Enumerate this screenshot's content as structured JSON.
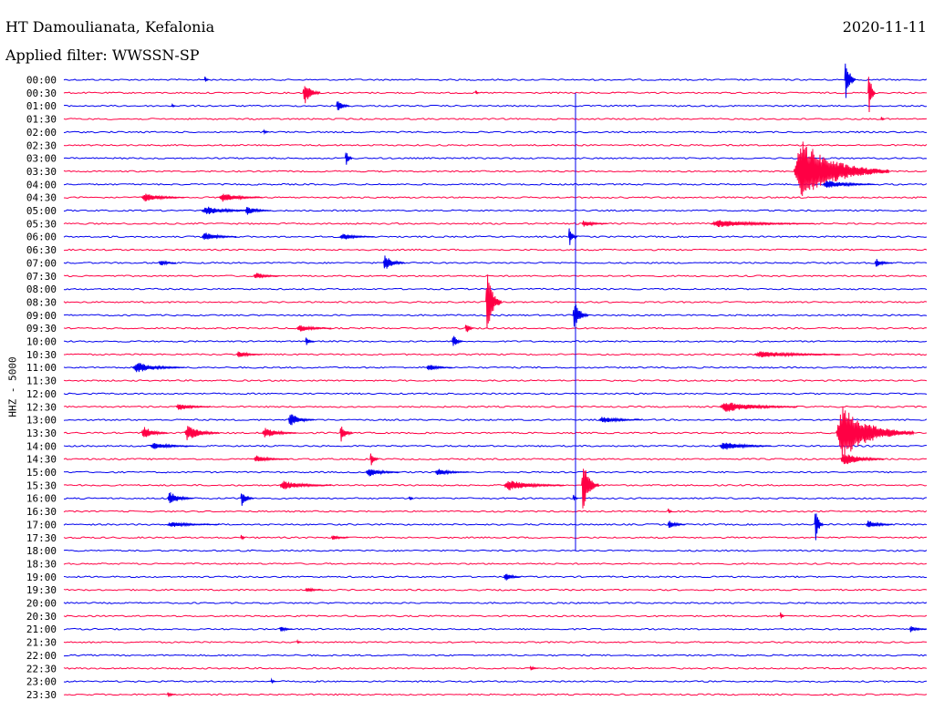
{
  "header": {
    "station": "HT Damoulianata, Kefalonia",
    "date": "2020-11-11",
    "filter": "Applied filter: WWSSN-SP"
  },
  "chart_data": {
    "type": "line",
    "ylabel": "HHZ - 5000",
    "colors": [
      "#0000ee",
      "#ff0044"
    ],
    "row_labels": [
      "00:00",
      "00:30",
      "01:00",
      "01:30",
      "02:00",
      "02:30",
      "03:00",
      "03:30",
      "04:00",
      "04:30",
      "05:00",
      "05:30",
      "06:00",
      "06:30",
      "07:00",
      "07:30",
      "08:00",
      "08:30",
      "09:00",
      "09:30",
      "10:00",
      "10:30",
      "11:00",
      "11:30",
      "12:00",
      "12:30",
      "13:00",
      "13:30",
      "14:00",
      "14:30",
      "15:00",
      "15:30",
      "16:00",
      "16:30",
      "17:00",
      "17:30",
      "18:00",
      "18:30",
      "19:00",
      "19:30",
      "20:00",
      "20:30",
      "21:00",
      "21:30",
      "22:00",
      "22:30",
      "23:00",
      "23:30"
    ],
    "row_minutes": 30,
    "events": [
      {
        "row": 0,
        "t": 0.905,
        "amp": 30,
        "len": 0.012,
        "dir": "both"
      },
      {
        "row": 0,
        "t": 0.163,
        "amp": 4,
        "len": 0.005,
        "dir": "both"
      },
      {
        "row": 1,
        "t": 0.277,
        "amp": 14,
        "len": 0.02,
        "dir": "both"
      },
      {
        "row": 1,
        "t": 0.932,
        "amp": 34,
        "len": 0.008,
        "dir": "both"
      },
      {
        "row": 1,
        "t": 0.477,
        "amp": 3,
        "len": 0.004,
        "dir": "both"
      },
      {
        "row": 2,
        "t": 0.316,
        "amp": 8,
        "len": 0.015,
        "dir": "both"
      },
      {
        "row": 2,
        "t": 0.125,
        "amp": 3,
        "len": 0.004,
        "dir": "both"
      },
      {
        "row": 3,
        "t": 0.947,
        "amp": 3,
        "len": 0.004,
        "dir": "both"
      },
      {
        "row": 4,
        "t": 0.231,
        "amp": 4,
        "len": 0.006,
        "dir": "both"
      },
      {
        "row": 6,
        "t": 0.326,
        "amp": 12,
        "len": 0.008,
        "dir": "both"
      },
      {
        "row": 7,
        "t": 0.846,
        "amp": 36,
        "len": 0.11,
        "dir": "both"
      },
      {
        "row": 8,
        "t": 0.88,
        "amp": 5,
        "len": 0.06,
        "dir": "both"
      },
      {
        "row": 9,
        "t": 0.09,
        "amp": 5,
        "len": 0.05,
        "dir": "both"
      },
      {
        "row": 9,
        "t": 0.18,
        "amp": 5,
        "len": 0.05,
        "dir": "both"
      },
      {
        "row": 10,
        "t": 0.16,
        "amp": 5,
        "len": 0.06,
        "dir": "both"
      },
      {
        "row": 10,
        "t": 0.21,
        "amp": 5,
        "len": 0.03,
        "dir": "both"
      },
      {
        "row": 11,
        "t": 0.6,
        "amp": 4,
        "len": 0.03,
        "dir": "both"
      },
      {
        "row": 11,
        "t": 0.75,
        "amp": 4,
        "len": 0.12,
        "dir": "both"
      },
      {
        "row": 12,
        "t": 0.585,
        "amp": 12,
        "len": 0.01,
        "dir": "both"
      },
      {
        "row": 12,
        "t": 0.16,
        "amp": 5,
        "len": 0.04,
        "dir": "both"
      },
      {
        "row": 12,
        "t": 0.32,
        "amp": 4,
        "len": 0.04,
        "dir": "both"
      },
      {
        "row": 14,
        "t": 0.37,
        "amp": 9,
        "len": 0.025,
        "dir": "both"
      },
      {
        "row": 14,
        "t": 0.11,
        "amp": 4,
        "len": 0.02,
        "dir": "both"
      },
      {
        "row": 14,
        "t": 0.94,
        "amp": 5,
        "len": 0.02,
        "dir": "both"
      },
      {
        "row": 15,
        "t": 0.22,
        "amp": 4,
        "len": 0.03,
        "dir": "both"
      },
      {
        "row": 17,
        "t": 0.489,
        "amp": 38,
        "len": 0.018,
        "dir": "both"
      },
      {
        "row": 18,
        "t": 0.59,
        "amp": 18,
        "len": 0.018,
        "dir": "both"
      },
      {
        "row": 19,
        "t": 0.465,
        "amp": 8,
        "len": 0.01,
        "dir": "both"
      },
      {
        "row": 19,
        "t": 0.27,
        "amp": 4,
        "len": 0.04,
        "dir": "both"
      },
      {
        "row": 20,
        "t": 0.45,
        "amp": 9,
        "len": 0.012,
        "dir": "both"
      },
      {
        "row": 20,
        "t": 0.28,
        "amp": 5,
        "len": 0.01,
        "dir": "both"
      },
      {
        "row": 21,
        "t": 0.2,
        "amp": 4,
        "len": 0.03,
        "dir": "both"
      },
      {
        "row": 21,
        "t": 0.8,
        "amp": 4,
        "len": 0.1,
        "dir": "both"
      },
      {
        "row": 22,
        "t": 0.08,
        "amp": 6,
        "len": 0.06,
        "dir": "both"
      },
      {
        "row": 22,
        "t": 0.42,
        "amp": 4,
        "len": 0.03,
        "dir": "both"
      },
      {
        "row": 25,
        "t": 0.76,
        "amp": 6,
        "len": 0.09,
        "dir": "both"
      },
      {
        "row": 25,
        "t": 0.13,
        "amp": 4,
        "len": 0.04,
        "dir": "both"
      },
      {
        "row": 26,
        "t": 0.26,
        "amp": 8,
        "len": 0.03,
        "dir": "both"
      },
      {
        "row": 26,
        "t": 0.62,
        "amp": 4,
        "len": 0.05,
        "dir": "both"
      },
      {
        "row": 27,
        "t": 0.895,
        "amp": 30,
        "len": 0.09,
        "dir": "both"
      },
      {
        "row": 27,
        "t": 0.09,
        "amp": 8,
        "len": 0.03,
        "dir": "both"
      },
      {
        "row": 27,
        "t": 0.14,
        "amp": 9,
        "len": 0.04,
        "dir": "both"
      },
      {
        "row": 27,
        "t": 0.23,
        "amp": 6,
        "len": 0.04,
        "dir": "both"
      },
      {
        "row": 27,
        "t": 0.32,
        "amp": 10,
        "len": 0.015,
        "dir": "both"
      },
      {
        "row": 28,
        "t": 0.76,
        "amp": 5,
        "len": 0.06,
        "dir": "both"
      },
      {
        "row": 28,
        "t": 0.1,
        "amp": 4,
        "len": 0.05,
        "dir": "both"
      },
      {
        "row": 29,
        "t": 0.355,
        "amp": 10,
        "len": 0.01,
        "dir": "both"
      },
      {
        "row": 29,
        "t": 0.22,
        "amp": 4,
        "len": 0.04,
        "dir": "both"
      },
      {
        "row": 29,
        "t": 0.9,
        "amp": 8,
        "len": 0.05,
        "dir": "both"
      },
      {
        "row": 30,
        "t": 0.35,
        "amp": 5,
        "len": 0.04,
        "dir": "both"
      },
      {
        "row": 30,
        "t": 0.43,
        "amp": 4,
        "len": 0.04,
        "dir": "both"
      },
      {
        "row": 31,
        "t": 0.6,
        "amp": 30,
        "len": 0.02,
        "dir": "both"
      },
      {
        "row": 31,
        "t": 0.51,
        "amp": 6,
        "len": 0.07,
        "dir": "both"
      },
      {
        "row": 31,
        "t": 0.25,
        "amp": 5,
        "len": 0.06,
        "dir": "both"
      },
      {
        "row": 32,
        "t": 0.12,
        "amp": 8,
        "len": 0.03,
        "dir": "both"
      },
      {
        "row": 32,
        "t": 0.205,
        "amp": 9,
        "len": 0.015,
        "dir": "both"
      },
      {
        "row": 32,
        "t": 0.59,
        "amp": 6,
        "len": 0.006,
        "dir": "both"
      },
      {
        "row": 32,
        "t": 0.4,
        "amp": 4,
        "len": 0.005,
        "dir": "both"
      },
      {
        "row": 33,
        "t": 0.7,
        "amp": 4,
        "len": 0.005,
        "dir": "both"
      },
      {
        "row": 34,
        "t": 0.87,
        "amp": 22,
        "len": 0.01,
        "dir": "both"
      },
      {
        "row": 34,
        "t": 0.7,
        "amp": 5,
        "len": 0.02,
        "dir": "both"
      },
      {
        "row": 34,
        "t": 0.93,
        "amp": 5,
        "len": 0.03,
        "dir": "both"
      },
      {
        "row": 34,
        "t": 0.12,
        "amp": 3,
        "len": 0.06,
        "dir": "both"
      },
      {
        "row": 35,
        "t": 0.205,
        "amp": 6,
        "len": 0.005,
        "dir": "both"
      },
      {
        "row": 35,
        "t": 0.31,
        "amp": 3,
        "len": 0.02,
        "dir": "both"
      },
      {
        "row": 38,
        "t": 0.51,
        "amp": 5,
        "len": 0.02,
        "dir": "both"
      },
      {
        "row": 39,
        "t": 0.28,
        "amp": 3,
        "len": 0.02,
        "dir": "both"
      },
      {
        "row": 41,
        "t": 0.83,
        "amp": 6,
        "len": 0.005,
        "dir": "both"
      },
      {
        "row": 42,
        "t": 0.25,
        "amp": 4,
        "len": 0.015,
        "dir": "both"
      },
      {
        "row": 42,
        "t": 0.98,
        "amp": 4,
        "len": 0.02,
        "dir": "both"
      },
      {
        "row": 43,
        "t": 0.27,
        "amp": 3,
        "len": 0.005,
        "dir": "both"
      },
      {
        "row": 45,
        "t": 0.54,
        "amp": 3,
        "len": 0.01,
        "dir": "both"
      },
      {
        "row": 46,
        "t": 0.24,
        "amp": 3,
        "len": 0.006,
        "dir": "both"
      },
      {
        "row": 47,
        "t": 0.12,
        "amp": 3,
        "len": 0.01,
        "dir": "both"
      }
    ],
    "spike_line": {
      "t": 0.593,
      "from_row": 1,
      "to_row": 36
    }
  }
}
